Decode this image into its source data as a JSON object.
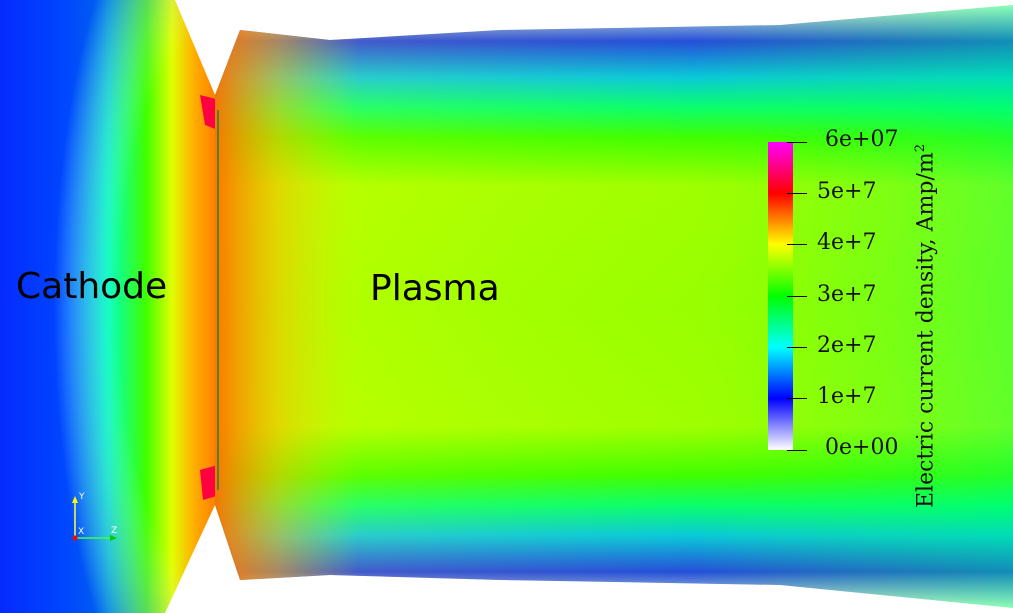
{
  "labels": {
    "cathode": "Cathode",
    "plasma": "Plasma"
  },
  "colorbar": {
    "title": "Electric current density, Amp/m",
    "title_superscript": "2",
    "range": [
      0,
      60000000
    ],
    "ticks": [
      {
        "value": 60000000,
        "label": "6e+07"
      },
      {
        "value": 50000000,
        "label": "5e+7"
      },
      {
        "value": 40000000,
        "label": "4e+7"
      },
      {
        "value": 30000000,
        "label": "3e+7"
      },
      {
        "value": 20000000,
        "label": "2e+7"
      },
      {
        "value": 10000000,
        "label": "1e+7"
      },
      {
        "value": 0,
        "label": "0e+00"
      }
    ],
    "colormap": [
      "#ffffff",
      "#0000ff",
      "#00ffff",
      "#00ff00",
      "#ffff00",
      "#ff0000",
      "#ff00ff"
    ]
  },
  "axes": {
    "x": "X",
    "y": "Y",
    "z": "Z",
    "x_color": "#ff0000",
    "y_color": "#ffff00",
    "z_color": "#00cc00"
  }
}
